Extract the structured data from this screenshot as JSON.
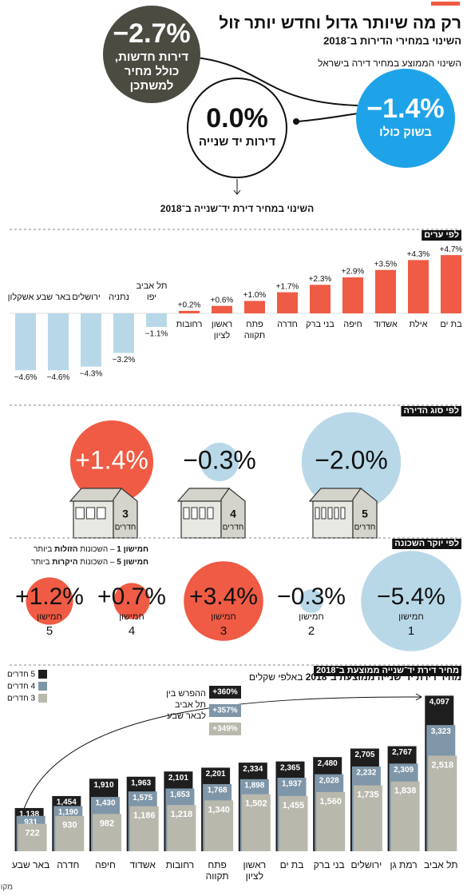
{
  "header": {
    "title": "רק מה שיותר גדול וחדש יותר זול",
    "subtitle": "השינוי במחירי הדירות ב־2018",
    "intro": "השינוי הממוצע במחיר דירה בישראל"
  },
  "overview": [
    {
      "value_label": "−2.7%",
      "label_lines": [
        "דירות חדשות,",
        "כולל מחיר",
        "למשתכן"
      ]
    },
    {
      "value_label": "−1.4%",
      "label_lines": [
        "בשוק כולו"
      ]
    },
    {
      "value_label": "0.0%",
      "label_lines": [
        "דירות יד שנייה"
      ]
    }
  ],
  "overview_caption": "השינוי במחיר דירת יד־שנייה ב־2018",
  "chart_data": [
    {
      "type": "bar",
      "title": "לפי ערים",
      "categories": [
        "בת ים",
        "אילת",
        "אשדוד",
        "חיפה",
        "בני ברק",
        "חדרה",
        "פתח תקווה",
        "ראשון לציון",
        "רחובות",
        "תל אביב יפו",
        "נתניה",
        "ירושלים",
        "באר שבע",
        "אשקלון"
      ],
      "values": [
        4.7,
        4.3,
        3.5,
        2.9,
        2.3,
        1.7,
        1.0,
        0.6,
        0.2,
        -1.1,
        -3.2,
        -4.3,
        -4.6,
        -4.6
      ],
      "value_labels": [
        "+4.7%",
        "+4.3%",
        "+3.5%",
        "+2.9%",
        "+2.3%",
        "+1.7%",
        "+1.0%",
        "+0.6%",
        "+0.2%",
        "−1.1%",
        "−3.2%",
        "−4.3%",
        "−4.6%",
        "−4.6%"
      ],
      "colors": {
        "positive": "#ef5b44",
        "negative": "#b8d8e8"
      }
    },
    {
      "type": "bubble",
      "title": "לפי סוג הדירה",
      "categories": [
        "3",
        "4",
        "5"
      ],
      "category_unit": "חדרים",
      "values": [
        1.4,
        -0.3,
        -2.0
      ],
      "value_labels": [
        "+1.4%",
        "−0.3%",
        "−2.0%"
      ],
      "colors": {
        "positive": "#ef5b44",
        "negative": "#b8d8e8"
      }
    },
    {
      "type": "bubble",
      "title": "לפי יוקר השכונה",
      "categories": [
        "1",
        "2",
        "3",
        "4",
        "5"
      ],
      "category_prefix": "חמישון",
      "values": [
        -5.4,
        -0.3,
        3.4,
        0.7,
        1.2
      ],
      "value_labels": [
        "−5.4%",
        "−0.3%",
        "+3.4%",
        "+0.7%",
        "+1.2%"
      ],
      "notes": [
        [
          "חמישון 1",
          " – השכונות ",
          "הזולות",
          " ביותר"
        ],
        [
          "חמישון 5",
          " – השכונות ",
          "היקרות",
          " ביותר"
        ]
      ],
      "colors": {
        "positive": "#ef5b44",
        "negative": "#b8d8e8"
      }
    },
    {
      "type": "grouped_bar",
      "title": "מחיר דירת יד־שנייה ממוצעת ב־2018",
      "unit": "באלפי שקלים",
      "categories": [
        "תל אביב",
        "רמת גן",
        "ירושלים",
        "בני ברק",
        "בת ים",
        "ראשון לציון",
        "פתח תקווה",
        "רחובות",
        "אשדוד",
        "חיפה",
        "חדרה",
        "באר שבע"
      ],
      "series": [
        {
          "name": "5 חדרים",
          "color": "#1e1e1e",
          "values": [
            4097,
            2767,
            2705,
            2480,
            2365,
            2334,
            2201,
            2101,
            1963,
            1910,
            1454,
            1138
          ],
          "value_labels": [
            "4,097",
            "2,767",
            "2,705",
            "2,480",
            "2,365",
            "2,334",
            "2,201",
            "2,101",
            "1,963",
            "1,910",
            "1,454",
            "1,138"
          ]
        },
        {
          "name": "4 חדרים",
          "color": "#7e96a8",
          "values": [
            3323,
            2309,
            2232,
            2028,
            1937,
            1898,
            1768,
            1653,
            1575,
            1430,
            1190,
            931
          ],
          "value_labels": [
            "3,323",
            "2,309",
            "2,232",
            "2,028",
            "1,937",
            "1,898",
            "1,768",
            "1,653",
            "1,575",
            "1,430",
            "1,190",
            "931"
          ]
        },
        {
          "name": "3 חדרים",
          "color": "#b9b8ad",
          "values": [
            2518,
            1838,
            1735,
            1560,
            1455,
            1502,
            1340,
            1218,
            1186,
            982,
            930,
            722
          ],
          "value_labels": [
            "2,518",
            "1,838",
            "1,735",
            "1,560",
            "1,455",
            "1,502",
            "1,340",
            "1,218",
            "1,186",
            "982",
            "930",
            "722"
          ]
        }
      ],
      "annotation": {
        "lines": [
          "ההפרש בין",
          "תל אביב",
          "לבאר שבע"
        ],
        "labels": [
          "+360%",
          "+357%",
          "+349%"
        ]
      }
    }
  ],
  "source": "מקור: מכון אלרוב ולמ״ס"
}
